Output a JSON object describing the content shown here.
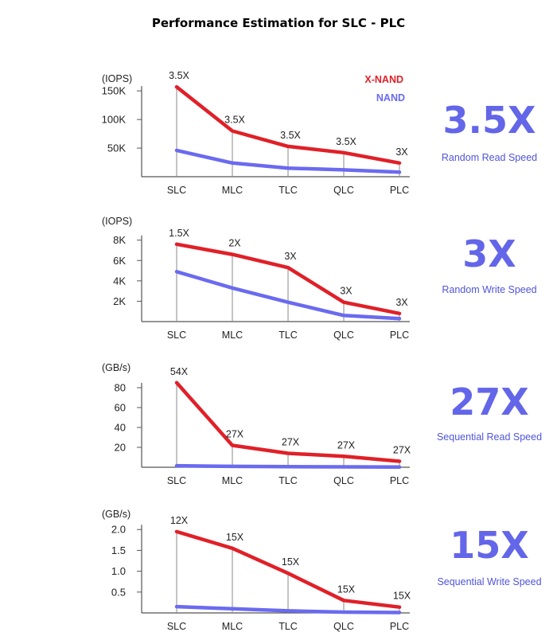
{
  "title": "Performance Estimation for SLC - PLC",
  "legend": {
    "xnand": "X-NAND",
    "nand": "NAND",
    "xnand_color": "#e02028",
    "nand_color": "#6a6af0"
  },
  "chart_data": [
    {
      "type": "line",
      "unit_label": "(IOPS)",
      "categories": [
        "SLC",
        "MLC",
        "TLC",
        "QLC",
        "PLC"
      ],
      "ylim": [
        0,
        160000
      ],
      "yticks": [
        50000,
        100000,
        150000
      ],
      "ytick_labels": [
        "50K",
        "100K",
        "150K"
      ],
      "series": [
        {
          "name": "X-NAND",
          "values": [
            157000,
            80000,
            53000,
            42000,
            24000
          ]
        },
        {
          "name": "NAND",
          "values": [
            46000,
            24000,
            15000,
            12000,
            8000
          ]
        }
      ],
      "annotations": [
        "3.5X",
        "3.5X",
        "3.5X",
        "3.5X",
        "3X"
      ],
      "big_number": "3.5X",
      "big_label": "Random Read Speed"
    },
    {
      "type": "line",
      "unit_label": "(IOPS)",
      "categories": [
        "SLC",
        "MLC",
        "TLC",
        "QLC",
        "PLC"
      ],
      "ylim": [
        0,
        8600
      ],
      "yticks": [
        2000,
        4000,
        6000,
        8000
      ],
      "ytick_labels": [
        "2K",
        "4K",
        "6K",
        "8K"
      ],
      "series": [
        {
          "name": "X-NAND",
          "values": [
            7600,
            6600,
            5300,
            1900,
            800
          ]
        },
        {
          "name": "NAND",
          "values": [
            4900,
            3300,
            1900,
            600,
            300
          ]
        }
      ],
      "annotations": [
        "1.5X",
        "2X",
        "3X",
        "3X",
        "3X"
      ],
      "big_number": "3X",
      "big_label": "Random Write Speed"
    },
    {
      "type": "line",
      "unit_label": "(GB/s)",
      "categories": [
        "SLC",
        "MLC",
        "TLC",
        "QLC",
        "PLC"
      ],
      "ylim": [
        0,
        88
      ],
      "yticks": [
        20,
        40,
        60,
        80
      ],
      "ytick_labels": [
        "20",
        "40",
        "60",
        "80"
      ],
      "series": [
        {
          "name": "X-NAND",
          "values": [
            85,
            22,
            14,
            11,
            6
          ]
        },
        {
          "name": "NAND",
          "values": [
            1.5,
            0.9,
            0.6,
            0.4,
            0.2
          ]
        }
      ],
      "annotations": [
        "54X",
        "27X",
        "27X",
        "27X",
        "27X"
      ],
      "big_number": "27X",
      "big_label": "Sequential Read Speed"
    },
    {
      "type": "line",
      "unit_label": "(GB/s)",
      "categories": [
        "SLC",
        "MLC",
        "TLC",
        "QLC",
        "PLC"
      ],
      "ylim": [
        0,
        2.1
      ],
      "yticks": [
        0.5,
        1.0,
        1.5,
        2.0
      ],
      "ytick_labels": [
        "0.5",
        "1.0",
        "1.5",
        "2.0"
      ],
      "series": [
        {
          "name": "X-NAND",
          "values": [
            1.95,
            1.55,
            0.95,
            0.3,
            0.14
          ]
        },
        {
          "name": "NAND",
          "values": [
            0.15,
            0.1,
            0.05,
            0.02,
            0.01
          ]
        }
      ],
      "annotations": [
        "12X",
        "15X",
        "15X",
        "15X",
        "15X"
      ],
      "big_number": "15X",
      "big_label": "Sequential Write Speed"
    }
  ]
}
